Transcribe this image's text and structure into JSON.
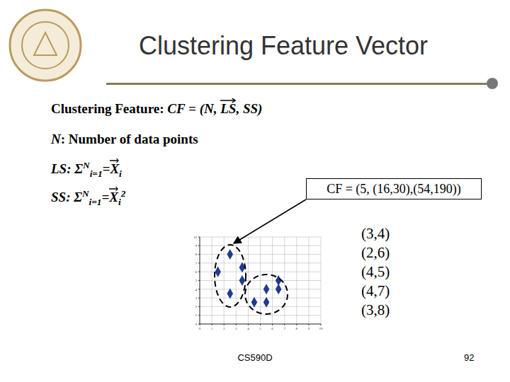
{
  "header": {
    "title": "Clustering Feature Vector"
  },
  "body": {
    "lines": [
      [
        {
          "text": "Clustering Feature:  "
        },
        {
          "text": "CF = (N, ",
          "style": "italic"
        },
        {
          "text": "LS",
          "style": "vector"
        },
        {
          "text": ", SS)",
          "style": "italic"
        }
      ],
      [
        {
          "text": "N",
          "style": "italic"
        },
        {
          "text": ": Number of data points"
        }
      ],
      [
        {
          "text": "LS: ",
          "style": "italic"
        },
        {
          "text": "Σ",
          "style": "italic"
        },
        {
          "text": "N",
          "style": "sup"
        },
        {
          "text": "i=1",
          "style": "sub"
        },
        {
          "text": "=",
          "style": "italic"
        },
        {
          "text": "X",
          "style": "vector"
        },
        {
          "text": "i",
          "style": "sub"
        }
      ],
      [
        {
          "text": "SS: ",
          "style": "italic"
        },
        {
          "text": "Σ",
          "style": "italic"
        },
        {
          "text": "N",
          "style": "sup"
        },
        {
          "text": "i=1",
          "style": "sub"
        },
        {
          "text": "=",
          "style": "italic"
        },
        {
          "text": "X",
          "style": "vector"
        },
        {
          "text": "i",
          "style": "sub"
        },
        {
          "text": "2",
          "style": "sup"
        }
      ]
    ],
    "cf_box": "CF = (5, (16,30),(54,190))",
    "points": [
      "(3,4)",
      "(2,6)",
      "(4,5)",
      "(4,7)",
      "(3,8)"
    ]
  },
  "chart_data": {
    "type": "scatter",
    "x": [
      1.5,
      2.5,
      3.5,
      3.5,
      2.5,
      5.5,
      6.5,
      6.5,
      4.5,
      5.5
    ],
    "values": [
      6,
      8,
      6.5,
      5,
      3.5,
      4,
      4,
      5,
      2.5,
      2.5
    ],
    "color": "#1f3c8f",
    "marker": "diamond",
    "xlim": [
      0,
      10
    ],
    "ylim": [
      0,
      10
    ],
    "xticks": [
      0,
      1,
      2,
      3,
      4,
      5,
      6,
      7,
      8,
      9,
      10
    ],
    "yticks": [
      0,
      1,
      2,
      3,
      4,
      5,
      6,
      7,
      8,
      9,
      10
    ],
    "grid": true
  },
  "footer": {
    "course": "CS590D",
    "page": "92"
  }
}
